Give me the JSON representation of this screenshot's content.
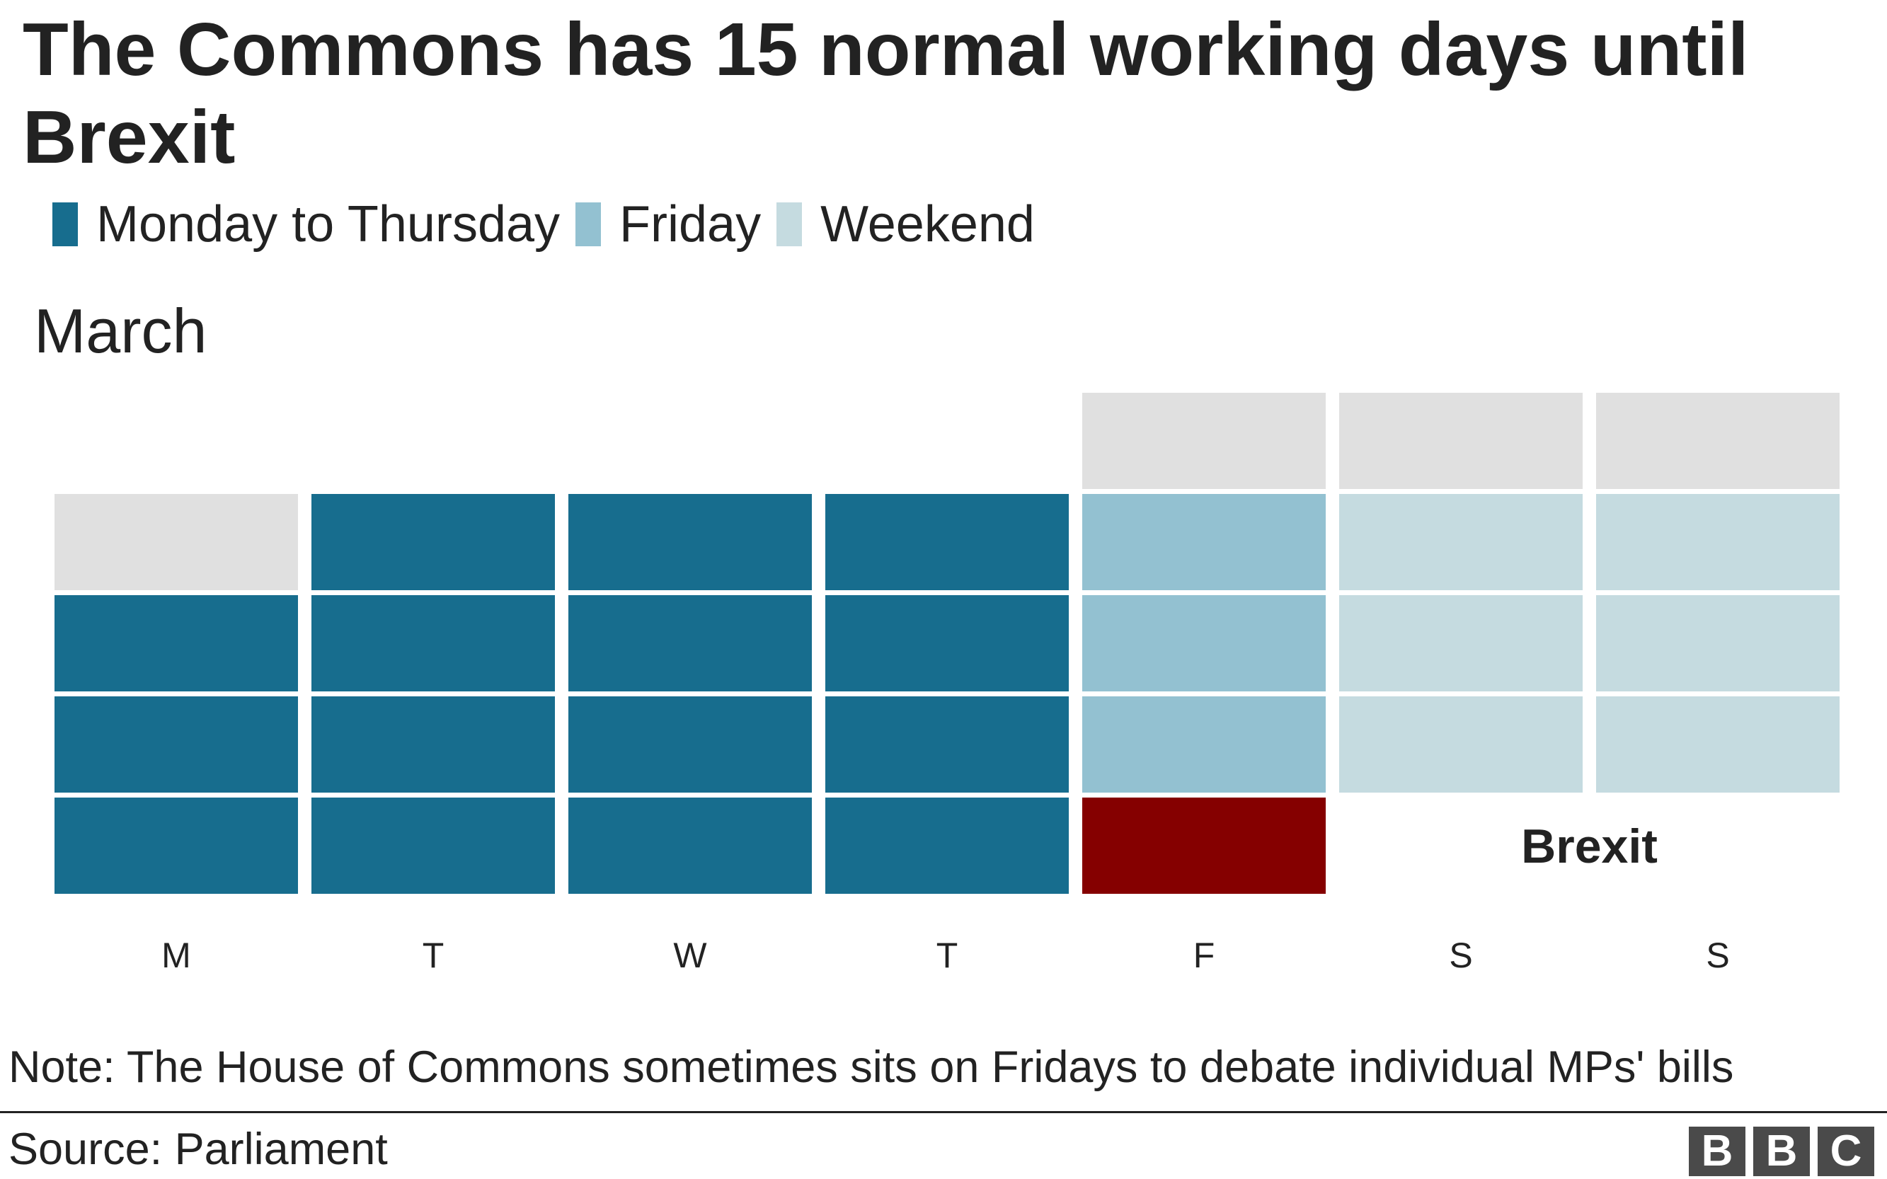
{
  "title": "The Commons has 15 normal working days until Brexit",
  "legend": [
    {
      "label": "Monday to Thursday",
      "color": "#176d8e"
    },
    {
      "label": "Friday",
      "color": "#93c1d1"
    },
    {
      "label": "Weekend",
      "color": "#c5dbe0"
    }
  ],
  "month_label": "March",
  "note": "Note: The House of Commons sometimes sits on Fridays to debate individual MPs' bills",
  "source": "Source: Parliament",
  "logo_letters": [
    "B",
    "B",
    "C"
  ],
  "chart_data": {
    "type": "calendar-heatmap",
    "title": "The Commons has 15 normal working days until Brexit",
    "month": "March",
    "weekday_labels": [
      "M",
      "T",
      "W",
      "T",
      "F",
      "S",
      "S"
    ],
    "categories": {
      "past": "#e0e0e0",
      "mon_thu": "#176d8e",
      "friday": "#93c1d1",
      "weekend": "#c5dbe0",
      "brexit": "#850000"
    },
    "weeks": [
      [
        null,
        null,
        null,
        null,
        "past",
        "past",
        "past"
      ],
      [
        "past",
        "mon_thu",
        "mon_thu",
        "mon_thu",
        "friday",
        "weekend",
        "weekend"
      ],
      [
        "mon_thu",
        "mon_thu",
        "mon_thu",
        "mon_thu",
        "friday",
        "weekend",
        "weekend"
      ],
      [
        "mon_thu",
        "mon_thu",
        "mon_thu",
        "mon_thu",
        "friday",
        "weekend",
        "weekend"
      ],
      [
        "mon_thu",
        "mon_thu",
        "mon_thu",
        "mon_thu",
        "brexit",
        null,
        null
      ]
    ],
    "normal_working_days": 15,
    "annotation": "Brexit"
  }
}
